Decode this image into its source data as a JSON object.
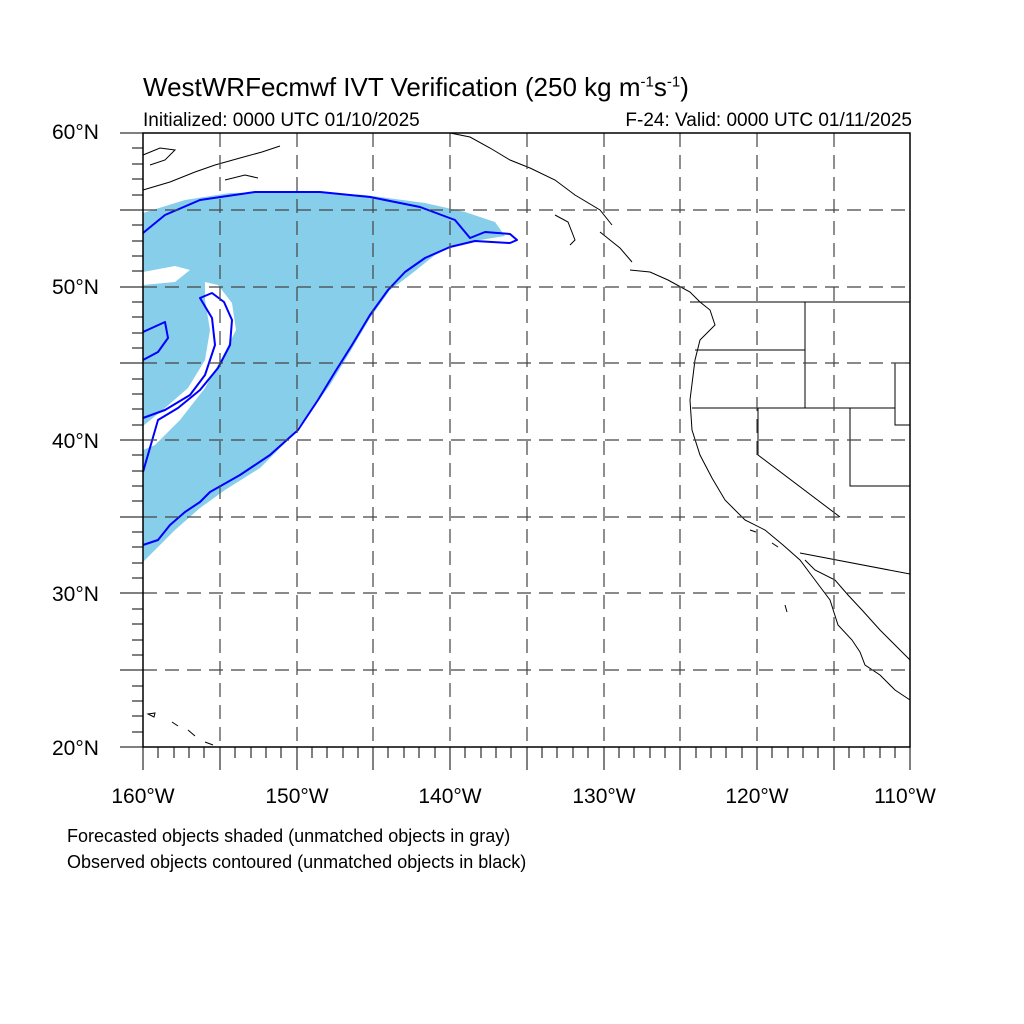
{
  "title": {
    "main_prefix": "WestWRFecmwf IVT Verification (250 kg m",
    "exp1": "-1",
    "mid": "s",
    "exp2": "-1",
    "suffix": ")"
  },
  "subtitle_left": "Initialized: 0000 UTC 01/10/2025",
  "subtitle_right": "F-24: Valid: 0000 UTC 01/11/2025",
  "lat_labels": [
    "60°N",
    "50°N",
    "40°N",
    "30°N",
    "20°N"
  ],
  "lon_labels": [
    "160°W",
    "150°W",
    "140°W",
    "130°W",
    "120°W",
    "110°W"
  ],
  "notes": [
    "Forecasted objects shaded (unmatched objects in gray)",
    "Observed objects contoured (unmatched objects in black)"
  ],
  "colors": {
    "forecast_fill": "#87ceeb",
    "observed_contour": "#0000ff",
    "coastline": "#000000",
    "grid": "#444444"
  },
  "map": {
    "lon_range": [
      -160,
      -110
    ],
    "lat_range": [
      20,
      60
    ],
    "grid_spacing_deg": 5
  }
}
